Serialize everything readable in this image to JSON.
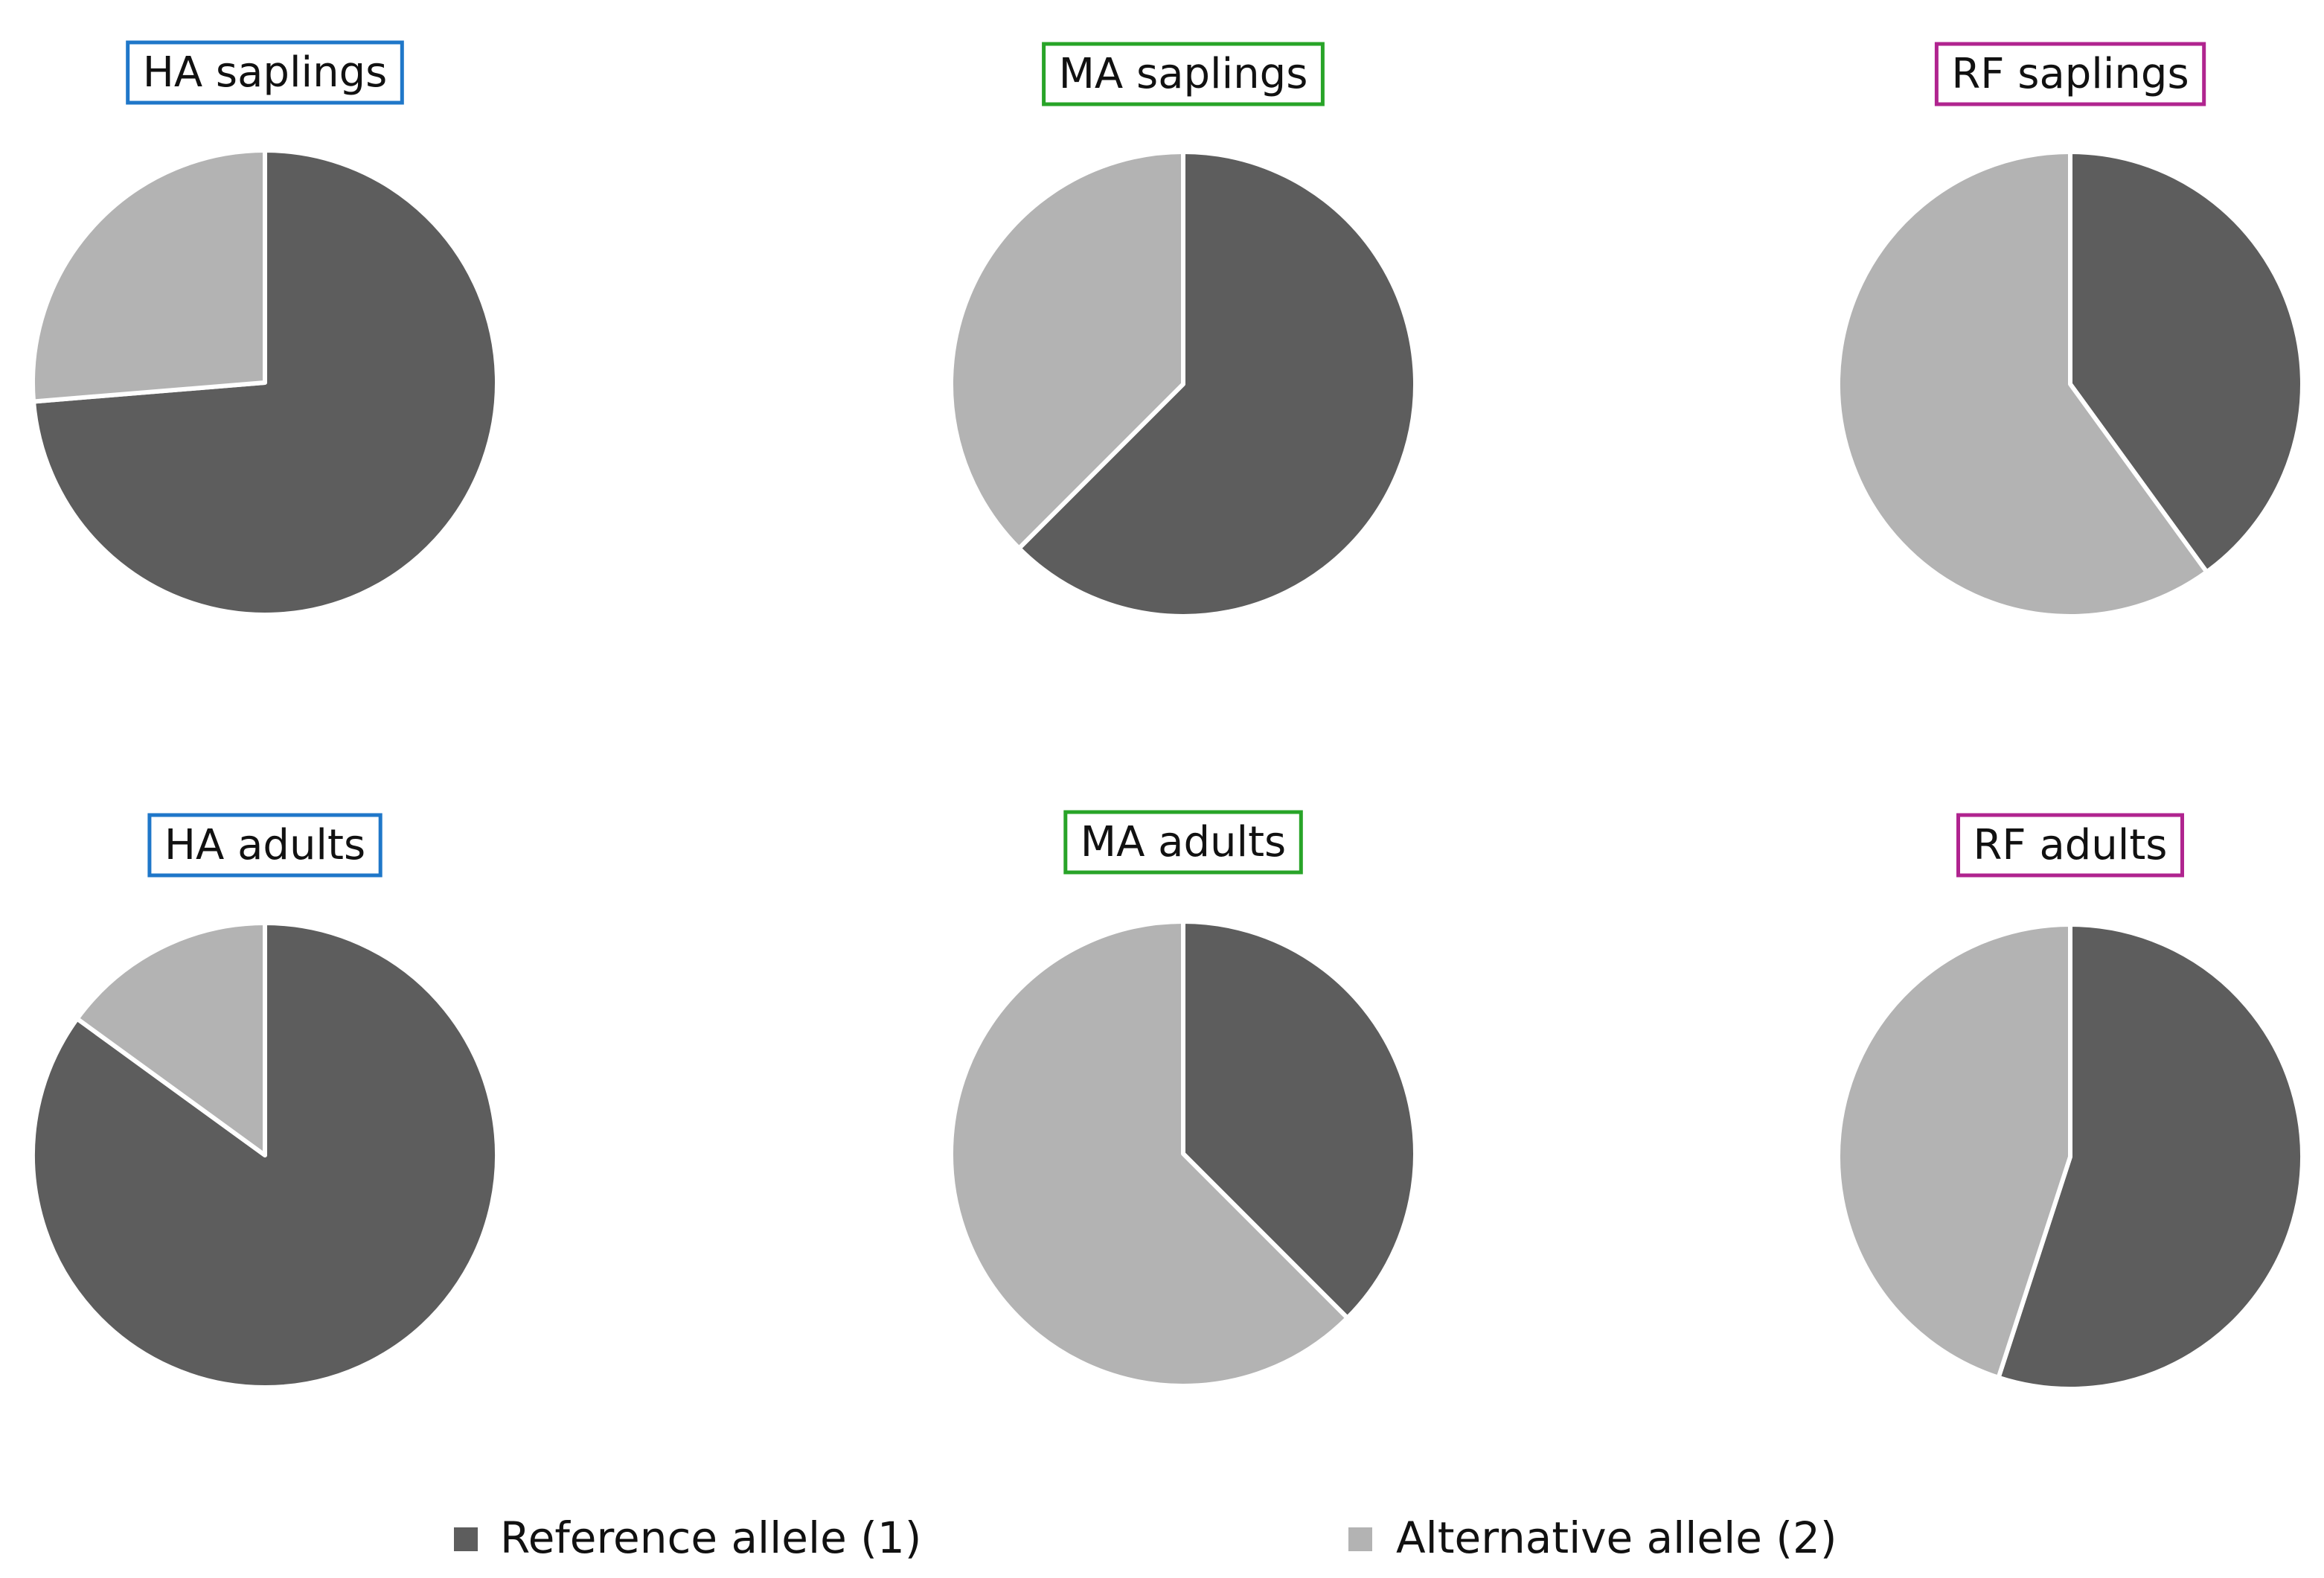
{
  "chart_data": [
    {
      "type": "pie",
      "title": "HA saplings",
      "frame_color": "#1f77c9",
      "title_color": "#6a6a6a",
      "categories": [
        "Reference allele (1)",
        "Alternative allele (2)"
      ],
      "values": [
        0.737,
        0.263
      ]
    },
    {
      "type": "pie",
      "title": "MA saplings",
      "frame_color": "#28a428",
      "title_color": "#111111",
      "categories": [
        "Reference allele (1)",
        "Alternative allele (2)"
      ],
      "values": [
        0.625,
        0.375
      ]
    },
    {
      "type": "pie",
      "title": "RF saplings",
      "frame_color": "#b0248f",
      "title_color": "#111111",
      "categories": [
        "Reference allele (1)",
        "Alternative allele (2)"
      ],
      "values": [
        0.4,
        0.6
      ]
    },
    {
      "type": "pie",
      "title": "HA adults",
      "frame_color": "#1f77c9",
      "title_color": "#6a6a6a",
      "categories": [
        "Reference allele (1)",
        "Alternative allele (2)"
      ],
      "values": [
        0.85,
        0.15
      ]
    },
    {
      "type": "pie",
      "title": "MA adults",
      "frame_color": "#28a428",
      "title_color": "#111111",
      "categories": [
        "Reference allele (1)",
        "Alternative allele (2)"
      ],
      "values": [
        0.375,
        0.625
      ]
    },
    {
      "type": "pie",
      "title": "RF adults",
      "frame_color": "#b0248f",
      "title_color": "#111111",
      "categories": [
        "Reference allele (1)",
        "Alternative allele (2)"
      ],
      "values": [
        0.55,
        0.45
      ]
    }
  ],
  "legend": {
    "placement": "bottom",
    "items": [
      {
        "label": "Reference allele (1)",
        "color": "#5d5d5d"
      },
      {
        "label": "Alternative allele (2)",
        "color": "#b3b3b3"
      }
    ]
  },
  "colors": {
    "reference": "#5d5d5d",
    "alternative": "#b3b3b3"
  }
}
